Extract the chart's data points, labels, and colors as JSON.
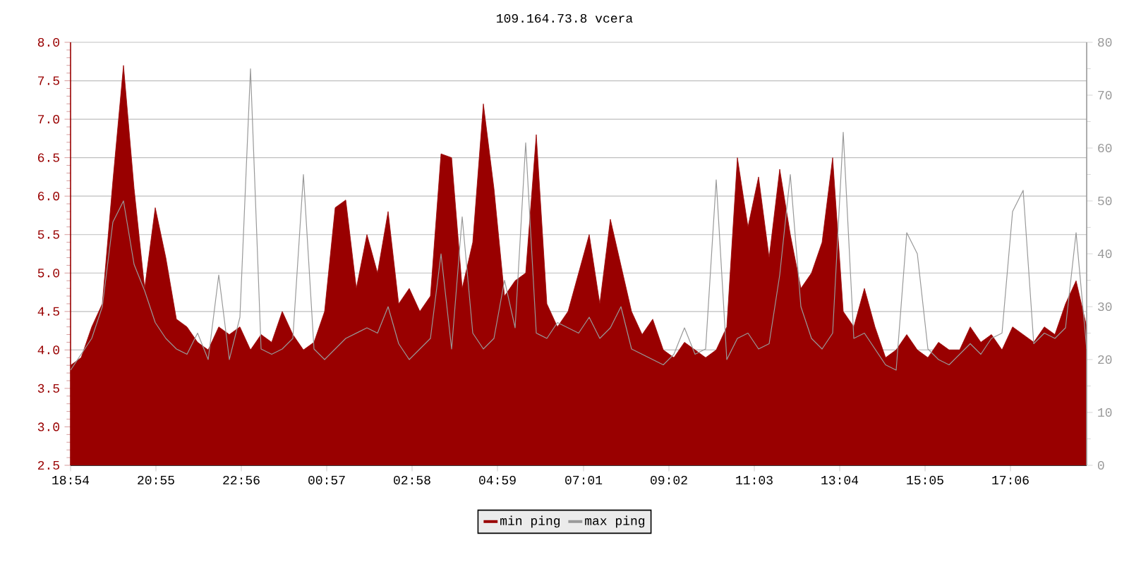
{
  "chart_data": {
    "type": "area",
    "title": "109.164.73.8 vcera",
    "x": [
      "--01-01T18:54",
      "--01-01T19:09",
      "--01-01T19:24",
      "--01-01T19:39",
      "--01-01T19:54",
      "--01-01T20:09",
      "--01-01T20:24",
      "--01-01T20:39",
      "--01-01T20:54",
      "--01-01T21:09",
      "--01-01T21:24",
      "--01-01T21:39",
      "--01-01T21:54",
      "--01-01T22:09",
      "--01-01T22:24",
      "--01-01T22:39",
      "--01-01T22:54",
      "--01-01T23:09",
      "--01-01T23:24",
      "--01-01T23:39",
      "--01-01T23:54",
      "--01-02T00:09",
      "--01-02T00:24",
      "--01-02T00:39",
      "--01-02T00:54",
      "--01-02T01:09",
      "--01-02T01:24",
      "--01-02T01:39",
      "--01-02T01:54",
      "--01-02T02:09",
      "--01-02T02:24",
      "--01-02T02:39",
      "--01-02T02:54",
      "--01-02T03:09",
      "--01-02T03:24",
      "--01-02T03:39",
      "--01-02T03:54",
      "--01-02T04:09",
      "--01-02T04:24",
      "--01-02T04:39",
      "--01-02T04:54",
      "--01-02T05:09",
      "--01-02T05:24",
      "--01-02T05:39",
      "--01-02T05:54",
      "--01-02T06:09",
      "--01-02T06:24",
      "--01-02T06:39",
      "--01-02T06:54",
      "--01-02T07:09",
      "--01-02T07:24",
      "--01-02T07:39",
      "--01-02T07:54",
      "--01-02T08:09",
      "--01-02T08:24",
      "--01-02T08:39",
      "--01-02T08:54",
      "--01-02T09:09",
      "--01-02T09:24",
      "--01-02T09:39",
      "--01-02T09:54",
      "--01-02T10:09",
      "--01-02T10:24",
      "--01-02T10:39",
      "--01-02T10:54",
      "--01-02T11:09",
      "--01-02T11:24",
      "--01-02T11:39",
      "--01-02T11:54",
      "--01-02T12:09",
      "--01-02T12:24",
      "--01-02T12:39",
      "--01-02T12:54",
      "--01-02T13:09",
      "--01-02T13:24",
      "--01-02T13:39",
      "--01-02T13:54",
      "--01-02T14:09",
      "--01-02T14:24",
      "--01-02T14:39",
      "--01-02T14:54",
      "--01-02T15:09",
      "--01-02T15:24",
      "--01-02T15:39",
      "--01-02T15:54",
      "--01-02T16:09",
      "--01-02T16:24",
      "--01-02T16:39",
      "--01-02T16:54",
      "--01-02T17:09",
      "--01-02T17:24",
      "--01-02T17:39",
      "--01-02T17:54",
      "--01-02T18:09",
      "--01-02T18:24",
      "--01-02T18:39",
      "--01-02T18:54"
    ],
    "series": [
      {
        "name": "min ping",
        "color": "#990000",
        "values": [
          3.8,
          3.9,
          4.3,
          4.6,
          6.2,
          7.7,
          6.1,
          4.8,
          5.85,
          5.2,
          4.4,
          4.3,
          4.1,
          4.0,
          4.3,
          4.2,
          4.3,
          4.0,
          4.2,
          4.1,
          4.5,
          4.2,
          4.0,
          4.1,
          4.5,
          5.85,
          5.95,
          4.8,
          5.5,
          5.0,
          5.8,
          4.6,
          4.8,
          4.5,
          4.7,
          6.55,
          6.5,
          4.8,
          5.4,
          7.2,
          6.1,
          4.7,
          4.9,
          5.0,
          6.8,
          4.6,
          4.3,
          4.5,
          5.0,
          5.5,
          4.6,
          5.7,
          5.1,
          4.5,
          4.2,
          4.4,
          4.0,
          3.9,
          4.1,
          4.0,
          3.9,
          4.0,
          4.3,
          6.5,
          5.6,
          6.25,
          5.2,
          6.35,
          5.5,
          4.8,
          5.0,
          5.4,
          6.5,
          4.5,
          4.3,
          4.8,
          4.3,
          3.9,
          4.0,
          4.2,
          4.0,
          3.9,
          4.1,
          4.0,
          4.0,
          4.3,
          4.1,
          4.2,
          4.0,
          4.3,
          4.2,
          4.1,
          4.3,
          4.2,
          4.6,
          4.9,
          4.3
        ]
      },
      {
        "name": "max ping",
        "color": "#999999",
        "type": "line",
        "axis": "y2",
        "values": [
          18,
          21,
          24,
          30,
          46,
          50,
          38,
          33,
          27,
          24,
          22,
          21,
          25,
          20,
          36,
          20,
          28,
          75,
          22,
          21,
          22,
          24,
          55,
          22,
          20,
          22,
          24,
          25,
          26,
          25,
          30,
          23,
          20,
          22,
          24,
          40,
          22,
          47,
          25,
          22,
          24,
          35,
          26,
          61,
          25,
          24,
          27,
          26,
          25,
          28,
          24,
          26,
          30,
          22,
          21,
          20,
          19,
          21,
          26,
          21,
          22,
          54,
          20,
          24,
          25,
          22,
          23,
          36,
          55,
          30,
          24,
          22,
          25,
          63,
          24,
          25,
          22,
          19,
          18,
          44,
          40,
          22,
          20,
          19,
          21,
          23,
          21,
          24,
          25,
          48,
          52,
          23,
          25,
          24,
          26,
          44,
          22
        ]
      }
    ],
    "xlim": [
      "--01-01T18:54",
      "--01-02T18:54"
    ],
    "xticks": [
      {
        "value": "--01-01T18:54",
        "label": "18:54"
      },
      {
        "value": "--01-01T20:55",
        "label": "20:55"
      },
      {
        "value": "--01-01T22:56",
        "label": "22:56"
      },
      {
        "value": "--01-02T00:57",
        "label": "00:57"
      },
      {
        "value": "--01-02T02:58",
        "label": "02:58"
      },
      {
        "value": "--01-02T04:59",
        "label": "04:59"
      },
      {
        "value": "--01-02T07:01",
        "label": "07:01"
      },
      {
        "value": "--01-02T09:02",
        "label": "09:02"
      },
      {
        "value": "--01-02T11:03",
        "label": "11:03"
      },
      {
        "value": "--01-02T13:04",
        "label": "13:04"
      },
      {
        "value": "--01-02T15:05",
        "label": "15:05"
      },
      {
        "value": "--01-02T17:06",
        "label": "17:06"
      }
    ],
    "ylim": [
      2.5,
      8
    ],
    "yticks": [
      2.5,
      {
        "value": 3,
        "label": "3.0"
      },
      3.5,
      {
        "value": 4,
        "label": "4.0"
      },
      4.5,
      {
        "value": 5,
        "label": "5.0"
      },
      5.5,
      {
        "value": 6,
        "label": "6.0"
      },
      6.5,
      {
        "value": 7,
        "label": "7.0"
      },
      7.5,
      {
        "value": 8,
        "label": "8.0"
      }
    ],
    "y2lim": [
      0,
      80
    ],
    "y2ticks": [
      0,
      10,
      20,
      30,
      40,
      50,
      60,
      70,
      80
    ],
    "grid": "y",
    "legend": "bottom"
  }
}
